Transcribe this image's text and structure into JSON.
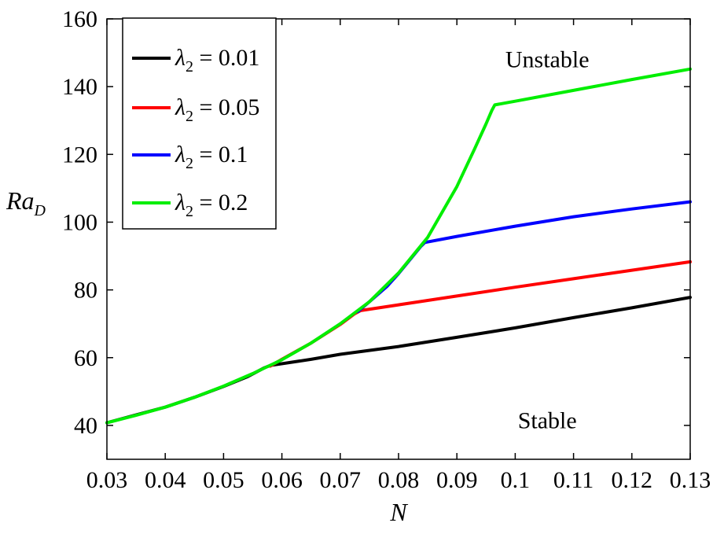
{
  "chart_data": {
    "type": "line",
    "xlabel": "N",
    "ylabel_main": "Ra",
    "ylabel_sub": "D",
    "xlim": [
      0.03,
      0.13
    ],
    "ylim": [
      30,
      160
    ],
    "x_ticks": [
      0.03,
      0.04,
      0.05,
      0.06,
      0.07,
      0.08,
      0.09,
      0.1,
      0.11,
      0.12,
      0.13
    ],
    "x_tick_labels": [
      "0.03",
      "0.04",
      "0.05",
      "0.06",
      "0.07",
      "0.08",
      "0.09",
      "0.1",
      "0.11",
      "0.12",
      "0.13"
    ],
    "y_ticks": [
      40,
      60,
      80,
      100,
      120,
      140,
      160
    ],
    "y_tick_labels": [
      "40",
      "60",
      "80",
      "100",
      "120",
      "140",
      "160"
    ],
    "grid": false,
    "legend_position": "top-left",
    "annotations": [
      {
        "text": "Unstable",
        "x": 0.1055,
        "y": 148
      },
      {
        "text": "Stable",
        "x": 0.1055,
        "y": 41.5
      }
    ],
    "series": [
      {
        "symbol": "λ",
        "sub": "2",
        "value_text": " = 0.01",
        "color": "#000000",
        "points": [
          [
            0.03,
            40.8
          ],
          [
            0.035,
            43.1
          ],
          [
            0.04,
            45.4
          ],
          [
            0.045,
            48.3
          ],
          [
            0.05,
            51.5
          ],
          [
            0.054,
            54.3
          ],
          [
            0.057,
            57.0
          ],
          [
            0.058,
            57.7
          ],
          [
            0.065,
            59.5
          ],
          [
            0.07,
            61.0
          ],
          [
            0.08,
            63.3
          ],
          [
            0.09,
            66.0
          ],
          [
            0.1,
            68.8
          ],
          [
            0.11,
            71.8
          ],
          [
            0.12,
            74.7
          ],
          [
            0.13,
            77.8
          ]
        ]
      },
      {
        "symbol": "λ",
        "sub": "2",
        "value_text": " = 0.05",
        "color": "#ff0000",
        "points": [
          [
            0.058,
            57.5
          ],
          [
            0.06,
            59.5
          ],
          [
            0.065,
            64.3
          ],
          [
            0.07,
            69.8
          ],
          [
            0.0725,
            73.0
          ],
          [
            0.0735,
            73.9
          ],
          [
            0.08,
            75.6
          ],
          [
            0.09,
            78.2
          ],
          [
            0.1,
            80.8
          ],
          [
            0.11,
            83.3
          ],
          [
            0.12,
            85.8
          ],
          [
            0.13,
            88.3
          ]
        ]
      },
      {
        "symbol": "λ",
        "sub": "2",
        "value_text": " = 0.1",
        "color": "#0000ff",
        "points": [
          [
            0.073,
            73.6
          ],
          [
            0.075,
            76.5
          ],
          [
            0.078,
            81.0
          ],
          [
            0.08,
            84.8
          ],
          [
            0.082,
            89.0
          ],
          [
            0.0838,
            92.8
          ],
          [
            0.0845,
            94.0
          ],
          [
            0.09,
            95.8
          ],
          [
            0.1,
            98.8
          ],
          [
            0.11,
            101.6
          ],
          [
            0.12,
            103.9
          ],
          [
            0.13,
            106.0
          ]
        ]
      },
      {
        "symbol": "λ",
        "sub": "2",
        "value_text": " = 0.2",
        "color": "#00ee00",
        "points": [
          [
            0.03,
            40.8
          ],
          [
            0.035,
            43.0
          ],
          [
            0.04,
            45.4
          ],
          [
            0.045,
            48.3
          ],
          [
            0.05,
            51.6
          ],
          [
            0.055,
            55.3
          ],
          [
            0.06,
            59.4
          ],
          [
            0.065,
            64.3
          ],
          [
            0.07,
            70.0
          ],
          [
            0.075,
            76.5
          ],
          [
            0.08,
            85.0
          ],
          [
            0.085,
            95.5
          ],
          [
            0.09,
            110.5
          ],
          [
            0.093,
            121.5
          ],
          [
            0.095,
            129.0
          ],
          [
            0.096,
            133.0
          ],
          [
            0.0965,
            134.6
          ],
          [
            0.1,
            135.7
          ],
          [
            0.11,
            138.9
          ],
          [
            0.12,
            142.1
          ],
          [
            0.13,
            145.2
          ]
        ]
      }
    ]
  }
}
